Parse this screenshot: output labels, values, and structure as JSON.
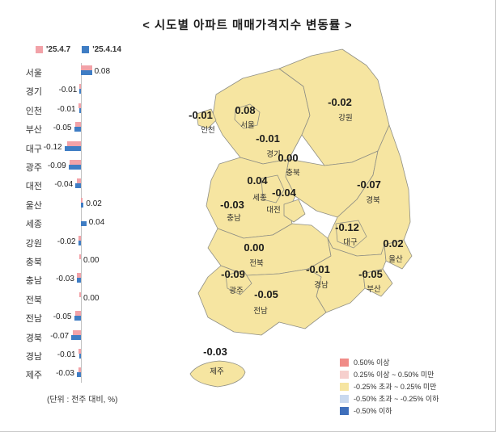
{
  "title": "< 시도별 아파트 매매가격지수 변동률 >",
  "unit_note": "(단위 : 전주 대비, %)",
  "chart_data": {
    "type": "bar",
    "orientation": "horizontal",
    "title": "시도별 아파트 매매가격지수 변동률",
    "unit": "전주 대비, %",
    "categories": [
      "서울",
      "경기",
      "인천",
      "부산",
      "대구",
      "광주",
      "대전",
      "울산",
      "세종",
      "강원",
      "충북",
      "충남",
      "전북",
      "전남",
      "경북",
      "경남",
      "제주"
    ],
    "series": [
      {
        "name": "'25.4.7",
        "color": "#F2A2A8",
        "values": [
          0.08,
          -0.01,
          -0.02,
          -0.04,
          -0.1,
          -0.08,
          -0.03,
          0.01,
          0.0,
          -0.02,
          -0.01,
          -0.03,
          -0.01,
          -0.04,
          -0.06,
          -0.02,
          -0.02
        ]
      },
      {
        "name": "'25.4.14",
        "color": "#3F7DC4",
        "values": [
          0.08,
          -0.01,
          -0.01,
          -0.05,
          -0.12,
          -0.09,
          -0.04,
          0.02,
          0.04,
          -0.02,
          0.0,
          -0.03,
          0.0,
          -0.05,
          -0.07,
          -0.01,
          -0.03
        ]
      }
    ],
    "value_labels": [
      "0.08",
      "-0.01",
      "-0.01",
      "-0.05",
      "-0.12",
      "-0.09",
      "-0.04",
      "0.02",
      "0.04",
      "-0.02",
      "0.00",
      "-0.03",
      "0.00",
      "-0.05",
      "-0.07",
      "-0.01",
      "-0.03"
    ]
  },
  "map": {
    "region_fill": "#F6E5A1",
    "regions": [
      {
        "key": "incheon",
        "name": "인천",
        "value": "-0.01"
      },
      {
        "key": "seoul",
        "name": "서울",
        "value": "0.08"
      },
      {
        "key": "gyeonggi",
        "name": "경기",
        "value": "-0.01"
      },
      {
        "key": "gangwon",
        "name": "강원",
        "value": "-0.02"
      },
      {
        "key": "chungbuk",
        "name": "충북",
        "value": "0.00"
      },
      {
        "key": "sejong",
        "name": "세종",
        "value": "0.04"
      },
      {
        "key": "daejeon",
        "name": "대전",
        "value": "-0.04"
      },
      {
        "key": "chungnam",
        "name": "충남",
        "value": "-0.03"
      },
      {
        "key": "gyeongbuk",
        "name": "경북",
        "value": "-0.07"
      },
      {
        "key": "daegu",
        "name": "대구",
        "value": "-0.12"
      },
      {
        "key": "ulsan",
        "name": "울산",
        "value": "0.02"
      },
      {
        "key": "jeonbuk",
        "name": "전북",
        "value": "0.00"
      },
      {
        "key": "gyeongnam",
        "name": "경남",
        "value": "-0.01"
      },
      {
        "key": "busan",
        "name": "부산",
        "value": "-0.05"
      },
      {
        "key": "gwangju",
        "name": "광주",
        "value": "-0.09"
      },
      {
        "key": "jeonnam",
        "name": "전남",
        "value": "-0.05"
      },
      {
        "key": "jeju",
        "name": "제주",
        "value": "-0.03"
      }
    ],
    "legend": [
      {
        "label": "0.50% 이상",
        "color": "#F08B87"
      },
      {
        "label": "0.25% 이상 ~ 0.50% 미만",
        "color": "#F6CFCD"
      },
      {
        "label": "-0.25% 초과 ~ 0.25% 미만",
        "color": "#F6E5A1"
      },
      {
        "label": "-0.50% 초과 ~ -0.25% 이하",
        "color": "#C9D9EF"
      },
      {
        "label": "-0.50% 이하",
        "color": "#3F6FBB"
      }
    ]
  }
}
